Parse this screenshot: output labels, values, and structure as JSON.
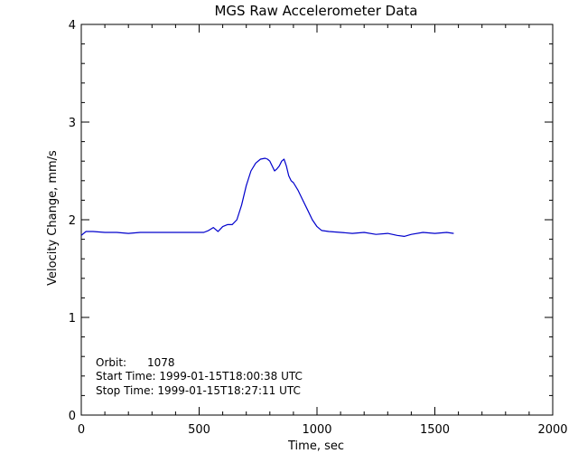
{
  "chart_data": {
    "type": "line",
    "title": "MGS Raw Accelerometer Data",
    "xlabel": "Time, sec",
    "ylabel": "Velocity Change, mm/s",
    "xlim": [
      0,
      2000
    ],
    "ylim": [
      0,
      4
    ],
    "x_ticks": [
      0,
      500,
      1000,
      1500,
      2000
    ],
    "x_tick_labels": [
      "0",
      "500",
      "1000",
      "1500",
      "2000"
    ],
    "y_ticks": [
      0,
      1,
      2,
      3,
      4
    ],
    "y_tick_labels": [
      "0",
      "1",
      "2",
      "3",
      "4"
    ],
    "grid": false,
    "line_color": "#0000cc",
    "annotations": [
      "Orbit:      1078",
      "Start Time: 1999-01-15T18:00:38 UTC",
      "Stop Time: 1999-01-15T18:27:11 UTC"
    ],
    "series": [
      {
        "x": [
          0,
          20,
          50,
          100,
          150,
          200,
          250,
          300,
          350,
          400,
          450,
          500,
          520,
          540,
          560,
          580,
          600,
          620,
          640,
          660,
          680,
          700,
          720,
          740,
          760,
          780,
          790,
          800,
          810,
          820,
          830,
          840,
          850,
          860,
          870,
          880,
          890,
          900,
          920,
          940,
          960,
          980,
          1000,
          1020,
          1050,
          1100,
          1150,
          1200,
          1250,
          1300,
          1340,
          1370,
          1400,
          1450,
          1500,
          1550,
          1580
        ],
        "y": [
          1.84,
          1.88,
          1.88,
          1.87,
          1.87,
          1.86,
          1.87,
          1.87,
          1.87,
          1.87,
          1.87,
          1.87,
          1.87,
          1.89,
          1.92,
          1.88,
          1.93,
          1.95,
          1.95,
          2.0,
          2.15,
          2.35,
          2.5,
          2.58,
          2.62,
          2.63,
          2.62,
          2.6,
          2.55,
          2.5,
          2.52,
          2.55,
          2.6,
          2.62,
          2.55,
          2.45,
          2.4,
          2.38,
          2.3,
          2.2,
          2.1,
          2.0,
          1.93,
          1.89,
          1.88,
          1.87,
          1.86,
          1.87,
          1.85,
          1.86,
          1.84,
          1.83,
          1.85,
          1.87,
          1.86,
          1.87,
          1.86
        ]
      }
    ]
  }
}
